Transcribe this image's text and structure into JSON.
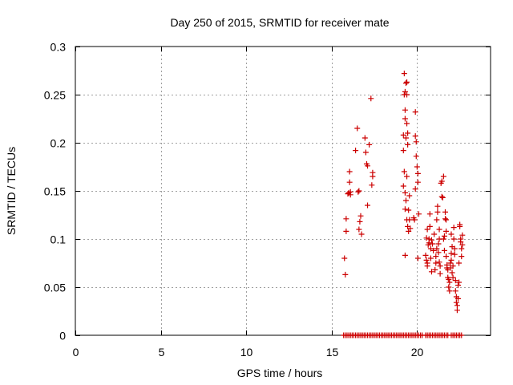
{
  "chart_data": {
    "type": "scatter",
    "title": "Day 250 of 2015, SRMTID for receiver mate",
    "xlabel": "GPS time / hours",
    "ylabel": "SRMTID / TECUs",
    "xlim": [
      0,
      24.3
    ],
    "ylim": [
      0,
      0.3
    ],
    "x_ticks": [
      0,
      5,
      10,
      15,
      20
    ],
    "x_tick_labels": [
      "0",
      "5",
      "10",
      "15",
      "20"
    ],
    "y_ticks": [
      0,
      0.05,
      0.1,
      0.15,
      0.2,
      0.25,
      0.3
    ],
    "y_tick_labels": [
      "0",
      "0.05",
      "0.1",
      "0.15",
      "0.2",
      "0.25",
      "0.3"
    ],
    "grid": true,
    "marker": "+",
    "color": "#cc0000",
    "series": [
      {
        "name": "SRMTID",
        "points": [
          [
            15.75,
            0.08
          ],
          [
            15.8,
            0.063
          ],
          [
            15.85,
            0.108
          ],
          [
            15.85,
            0.121
          ],
          [
            15.95,
            0.147
          ],
          [
            16.0,
            0.148
          ],
          [
            16.05,
            0.159
          ],
          [
            16.05,
            0.17
          ],
          [
            16.1,
            0.149
          ],
          [
            16.1,
            0.146
          ],
          [
            16.5,
            0.215
          ],
          [
            16.55,
            0.149
          ],
          [
            16.6,
            0.15
          ],
          [
            16.6,
            0.11
          ],
          [
            16.65,
            0.118
          ],
          [
            16.7,
            0.124
          ],
          [
            16.75,
            0.105
          ],
          [
            16.4,
            0.192
          ],
          [
            16.95,
            0.205
          ],
          [
            17.0,
            0.19
          ],
          [
            17.05,
            0.178
          ],
          [
            17.1,
            0.176
          ],
          [
            17.1,
            0.135
          ],
          [
            17.2,
            0.198
          ],
          [
            17.3,
            0.246
          ],
          [
            17.35,
            0.156
          ],
          [
            17.4,
            0.169
          ],
          [
            17.4,
            0.165
          ],
          [
            19.25,
            0.272
          ],
          [
            19.25,
            0.25
          ],
          [
            19.3,
            0.253
          ],
          [
            19.3,
            0.234
          ],
          [
            19.3,
            0.225
          ],
          [
            19.2,
            0.208
          ],
          [
            19.2,
            0.192
          ],
          [
            19.25,
            0.17
          ],
          [
            19.2,
            0.155
          ],
          [
            19.3,
            0.148
          ],
          [
            19.3,
            0.131
          ],
          [
            19.35,
            0.262
          ],
          [
            19.4,
            0.263
          ],
          [
            19.4,
            0.25
          ],
          [
            19.4,
            0.22
          ],
          [
            19.35,
            0.205
          ],
          [
            19.45,
            0.21
          ],
          [
            19.45,
            0.198
          ],
          [
            19.4,
            0.165
          ],
          [
            19.35,
            0.14
          ],
          [
            19.4,
            0.12
          ],
          [
            19.45,
            0.113
          ],
          [
            19.5,
            0.108
          ],
          [
            19.5,
            0.13
          ],
          [
            19.55,
            0.145
          ],
          [
            19.55,
            0.12
          ],
          [
            19.3,
            0.083
          ],
          [
            19.6,
            0.111
          ],
          [
            19.8,
            0.122
          ],
          [
            19.85,
            0.12
          ],
          [
            19.9,
            0.232
          ],
          [
            19.9,
            0.207
          ],
          [
            19.95,
            0.201
          ],
          [
            19.95,
            0.186
          ],
          [
            20.0,
            0.175
          ],
          [
            20.05,
            0.168
          ],
          [
            20.05,
            0.159
          ],
          [
            20.1,
            0.126
          ],
          [
            20.05,
            0.08
          ],
          [
            19.9,
            0.152
          ],
          [
            20.5,
            0.083
          ],
          [
            20.55,
            0.078
          ],
          [
            20.6,
            0.075
          ],
          [
            20.6,
            0.072
          ],
          [
            20.65,
            0.094
          ],
          [
            20.7,
            0.096
          ],
          [
            20.7,
            0.1
          ],
          [
            20.75,
            0.113
          ],
          [
            20.75,
            0.126
          ],
          [
            20.8,
            0.09
          ],
          [
            20.8,
            0.08
          ],
          [
            20.85,
            0.099
          ],
          [
            20.85,
            0.066
          ],
          [
            20.9,
            0.095
          ],
          [
            20.95,
            0.088
          ],
          [
            21.0,
            0.105
          ],
          [
            20.55,
            0.101
          ],
          [
            20.6,
            0.11
          ],
          [
            21.05,
            0.068
          ],
          [
            21.1,
            0.075
          ],
          [
            21.1,
            0.082
          ],
          [
            21.15,
            0.09
          ],
          [
            21.15,
            0.12
          ],
          [
            21.2,
            0.128
          ],
          [
            21.2,
            0.134
          ],
          [
            21.25,
            0.095
          ],
          [
            21.25,
            0.086
          ],
          [
            21.3,
            0.1
          ],
          [
            21.3,
            0.11
          ],
          [
            21.3,
            0.076
          ],
          [
            21.35,
            0.064
          ],
          [
            21.35,
            0.072
          ],
          [
            21.4,
            0.158
          ],
          [
            21.45,
            0.16
          ],
          [
            21.45,
            0.144
          ],
          [
            21.5,
            0.143
          ],
          [
            21.55,
            0.165
          ],
          [
            21.55,
            0.1
          ],
          [
            21.6,
            0.103
          ],
          [
            21.6,
            0.088
          ],
          [
            21.65,
            0.128
          ],
          [
            21.65,
            0.121
          ],
          [
            21.7,
            0.108
          ],
          [
            21.7,
            0.082
          ],
          [
            21.75,
            0.073
          ],
          [
            21.75,
            0.07
          ],
          [
            21.8,
            0.068
          ],
          [
            21.8,
            0.06
          ],
          [
            21.85,
            0.058
          ],
          [
            21.85,
            0.05
          ],
          [
            21.9,
            0.046
          ],
          [
            21.9,
            0.055
          ],
          [
            21.95,
            0.07
          ],
          [
            21.95,
            0.075
          ],
          [
            22.0,
            0.078
          ],
          [
            22.0,
            0.085
          ],
          [
            22.05,
            0.092
          ],
          [
            22.05,
            0.065
          ],
          [
            22.1,
            0.072
          ],
          [
            22.1,
            0.06
          ],
          [
            22.15,
            0.112
          ],
          [
            22.15,
            0.1
          ],
          [
            22.2,
            0.084
          ],
          [
            22.2,
            0.09
          ],
          [
            22.25,
            0.057
          ],
          [
            22.25,
            0.046
          ],
          [
            22.3,
            0.04
          ],
          [
            22.3,
            0.034
          ],
          [
            22.35,
            0.031
          ],
          [
            22.35,
            0.026
          ],
          [
            22.4,
            0.038
          ],
          [
            22.4,
            0.052
          ],
          [
            22.45,
            0.055
          ],
          [
            22.45,
            0.075
          ],
          [
            22.5,
            0.115
          ],
          [
            22.5,
            0.113
          ],
          [
            22.55,
            0.1
          ],
          [
            22.55,
            0.097
          ],
          [
            22.6,
            0.09
          ],
          [
            22.6,
            0.082
          ],
          [
            22.65,
            0.104
          ],
          [
            22.65,
            0.094
          ],
          [
            21.7,
            0.12
          ],
          [
            22.0,
            0.105
          ],
          [
            15.7,
            0
          ],
          [
            15.8,
            0
          ],
          [
            15.9,
            0
          ],
          [
            16.0,
            0
          ],
          [
            16.1,
            0
          ],
          [
            16.2,
            0
          ],
          [
            16.3,
            0
          ],
          [
            16.4,
            0
          ],
          [
            16.5,
            0
          ],
          [
            16.6,
            0
          ],
          [
            16.7,
            0
          ],
          [
            16.8,
            0
          ],
          [
            16.9,
            0
          ],
          [
            17.0,
            0
          ],
          [
            17.1,
            0
          ],
          [
            17.2,
            0
          ],
          [
            17.3,
            0
          ],
          [
            17.4,
            0
          ],
          [
            17.5,
            0
          ],
          [
            17.6,
            0
          ],
          [
            17.7,
            0
          ],
          [
            17.8,
            0
          ],
          [
            17.9,
            0
          ],
          [
            18.0,
            0
          ],
          [
            18.1,
            0
          ],
          [
            18.2,
            0
          ],
          [
            18.3,
            0
          ],
          [
            18.4,
            0
          ],
          [
            18.5,
            0
          ],
          [
            18.6,
            0
          ],
          [
            18.7,
            0
          ],
          [
            18.8,
            0
          ],
          [
            18.9,
            0
          ],
          [
            19.0,
            0
          ],
          [
            19.1,
            0
          ],
          [
            19.2,
            0
          ],
          [
            19.3,
            0
          ],
          [
            19.4,
            0
          ],
          [
            19.5,
            0
          ],
          [
            19.6,
            0
          ],
          [
            19.7,
            0
          ],
          [
            19.8,
            0
          ],
          [
            19.9,
            0
          ],
          [
            20.0,
            0
          ],
          [
            20.1,
            0
          ],
          [
            20.2,
            0
          ],
          [
            20.3,
            0
          ],
          [
            20.5,
            0
          ],
          [
            20.6,
            0
          ],
          [
            20.7,
            0
          ],
          [
            20.8,
            0
          ],
          [
            20.9,
            0
          ],
          [
            21.0,
            0
          ],
          [
            21.1,
            0
          ],
          [
            21.2,
            0
          ],
          [
            21.3,
            0
          ],
          [
            21.4,
            0
          ],
          [
            21.5,
            0
          ],
          [
            21.6,
            0
          ],
          [
            21.7,
            0
          ],
          [
            21.8,
            0
          ],
          [
            22.0,
            0
          ],
          [
            22.1,
            0
          ],
          [
            22.2,
            0
          ],
          [
            22.3,
            0
          ],
          [
            22.4,
            0
          ],
          [
            22.5,
            0
          ],
          [
            22.6,
            0
          ]
        ]
      }
    ]
  }
}
